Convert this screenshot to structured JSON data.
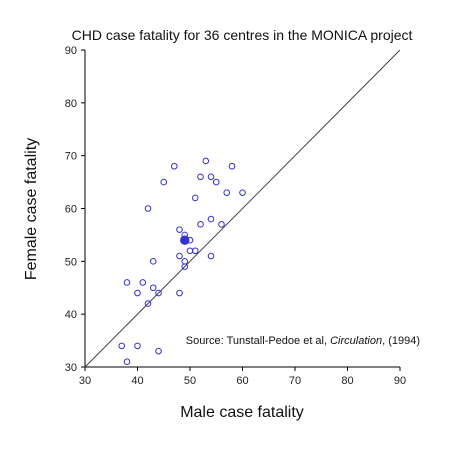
{
  "chart_data": {
    "type": "scatter",
    "title": "CHD case fatality for 36 centres in the MONICA project",
    "xlabel": "Male case fatality",
    "ylabel": "Female case fatality",
    "xlim": [
      30,
      90
    ],
    "ylim": [
      30,
      90
    ],
    "xticks": [
      30,
      40,
      50,
      60,
      70,
      80,
      90
    ],
    "yticks": [
      30,
      40,
      50,
      60,
      70,
      80,
      90
    ],
    "grid": false,
    "reference_line": {
      "type": "identity",
      "from": [
        30,
        30
      ],
      "to": [
        90,
        90
      ]
    },
    "marker_color": "#3333cc",
    "axis_color": "#000000",
    "points": [
      {
        "x": 37,
        "y": 34
      },
      {
        "x": 38,
        "y": 31
      },
      {
        "x": 38,
        "y": 46
      },
      {
        "x": 40,
        "y": 34
      },
      {
        "x": 40,
        "y": 44
      },
      {
        "x": 41,
        "y": 46
      },
      {
        "x": 42,
        "y": 42
      },
      {
        "x": 42,
        "y": 60
      },
      {
        "x": 43,
        "y": 45
      },
      {
        "x": 43,
        "y": 50
      },
      {
        "x": 44,
        "y": 33
      },
      {
        "x": 44,
        "y": 44
      },
      {
        "x": 45,
        "y": 65
      },
      {
        "x": 47,
        "y": 68
      },
      {
        "x": 48,
        "y": 44
      },
      {
        "x": 48,
        "y": 51
      },
      {
        "x": 48,
        "y": 56
      },
      {
        "x": 49,
        "y": 49
      },
      {
        "x": 49,
        "y": 50
      },
      {
        "x": 49,
        "y": 55
      },
      {
        "x": 49,
        "y": 54,
        "filled": true
      },
      {
        "x": 50,
        "y": 52
      },
      {
        "x": 50,
        "y": 54
      },
      {
        "x": 51,
        "y": 52
      },
      {
        "x": 51,
        "y": 62
      },
      {
        "x": 52,
        "y": 57
      },
      {
        "x": 52,
        "y": 66
      },
      {
        "x": 53,
        "y": 69
      },
      {
        "x": 54,
        "y": 51
      },
      {
        "x": 54,
        "y": 58
      },
      {
        "x": 54,
        "y": 66
      },
      {
        "x": 55,
        "y": 65
      },
      {
        "x": 56,
        "y": 57
      },
      {
        "x": 57,
        "y": 63
      },
      {
        "x": 58,
        "y": 68
      },
      {
        "x": 60,
        "y": 63
      }
    ],
    "annotation": {
      "prefix": "Source: Tunstall-Pedoe et al, ",
      "journal": "Circulation",
      "suffix": ", (1994)"
    }
  }
}
